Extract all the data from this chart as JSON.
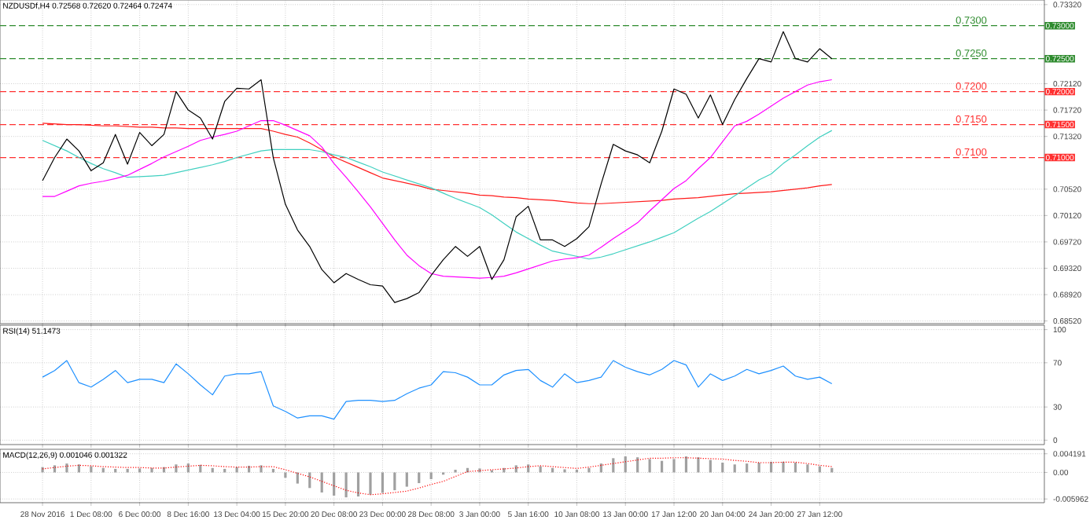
{
  "chart_data": [
    {
      "type": "line",
      "title": "NZDUSDf,H4  0.72568 0.72620 0.72464 0.72474",
      "grid": true,
      "tick_labels": "y",
      "categories": [
        null,
        null,
        null,
        null,
        null,
        null,
        null,
        null,
        null,
        null,
        null,
        null,
        null,
        null,
        null,
        null,
        null,
        null,
        null,
        null,
        null,
        null,
        null,
        null,
        null,
        null,
        null,
        null,
        null,
        null,
        null,
        null,
        null,
        null,
        null,
        null,
        null,
        null,
        null,
        null,
        null,
        null,
        null,
        null,
        null,
        null,
        null,
        null,
        null,
        null,
        null,
        null,
        null,
        null,
        null,
        null,
        null,
        null,
        null,
        null,
        null,
        null,
        null,
        null,
        null,
        null,
        null,
        null,
        null,
        null,
        null,
        null,
        null,
        null,
        null,
        null,
        null,
        null,
        null,
        null,
        null,
        null,
        null,
        null,
        null,
        null
      ],
      "ylim": [
        0.6848,
        0.7339
      ],
      "yticks": [
        {
          "value": 0.7332,
          "label": "0.73320"
        },
        {
          "value": 0.7212,
          "label": "0.72120"
        },
        {
          "value": 0.7172,
          "label": "0.71720"
        },
        {
          "value": 0.7132,
          "label": "0.71320"
        },
        {
          "value": 0.7052,
          "label": "0.70520"
        },
        {
          "value": 0.7012,
          "label": "0.70120"
        },
        {
          "value": 0.6972,
          "label": "0.69720"
        },
        {
          "value": 0.6932,
          "label": "0.69320"
        },
        {
          "value": 0.6892,
          "label": "0.68920"
        },
        {
          "value": 0.6852,
          "label": "0.68520"
        }
      ],
      "annotations": [
        "0.73000",
        "0.72500",
        "0.72000",
        "0.71500",
        "0.71000"
      ],
      "ref_lines": [
        {
          "axis": "y",
          "value": 0.73,
          "label": "0.7300",
          "color": "#2e8b2e",
          "line_style": "dashed"
        },
        {
          "axis": "y",
          "value": 0.725,
          "label": "0.7250",
          "color": "#2e8b2e",
          "line_style": "dashed"
        },
        {
          "axis": "y",
          "value": 0.72,
          "label": "0.7200",
          "color": "#ff3030",
          "line_style": "dashed"
        },
        {
          "axis": "y",
          "value": 0.715,
          "label": "0.7150",
          "color": "#ff3030",
          "line_style": "dashed"
        },
        {
          "axis": "y",
          "value": 0.71,
          "label": "0.7100",
          "color": "#ff3030",
          "line_style": "dashed"
        }
      ],
      "series": [
        {
          "color": "#ff1a1a",
          "values": [
            null,
            null,
            null,
            0.7152,
            0.7151,
            0.715,
            0.715,
            0.7149,
            0.7148,
            0.7148,
            0.7147,
            0.7146,
            0.7146,
            0.7145,
            0.7145,
            0.7144,
            0.7144,
            0.7144,
            0.7144,
            0.7144,
            0.7144,
            0.7144,
            0.714,
            0.7135,
            0.7131,
            0.7122,
            0.7112,
            0.7101,
            0.7093,
            0.7085,
            0.7077,
            0.7069,
            0.7065,
            0.7061,
            0.7057,
            0.7052,
            0.705,
            0.7048,
            0.7046,
            0.7043,
            0.7042,
            0.704,
            0.7039,
            0.7037,
            0.7036,
            0.7035,
            0.7033,
            0.7031,
            0.703,
            0.703,
            0.7031,
            0.7032,
            0.7033,
            0.7034,
            0.7035,
            0.7037,
            0.7038,
            0.7039,
            0.7041,
            0.7043,
            0.7045,
            0.7046,
            0.7047,
            0.7048,
            0.705,
            0.7052,
            0.7054,
            0.7057,
            0.7059,
            null,
            null,
            null,
            null,
            null,
            null,
            null,
            null,
            null,
            null,
            null,
            null,
            null,
            null,
            null,
            null,
            null
          ]
        },
        {
          "color": "#40d0c0",
          "values": [
            null,
            null,
            null,
            0.7126,
            0.7118,
            0.711,
            0.71,
            0.7091,
            0.7083,
            0.7077,
            0.707,
            0.7071,
            0.7072,
            0.7073,
            0.7077,
            0.7081,
            0.7085,
            0.7089,
            0.7094,
            0.71,
            0.7105,
            0.711,
            0.7112,
            0.7112,
            0.7112,
            0.7112,
            0.7109,
            0.7104,
            0.71,
            0.7093,
            0.7086,
            0.7078,
            0.7072,
            0.7066,
            0.706,
            0.7054,
            0.7046,
            0.7038,
            0.7031,
            0.7024,
            0.7013,
            0.7,
            0.6987,
            0.6977,
            0.6967,
            0.6958,
            0.6954,
            0.695,
            0.6946,
            0.6949,
            0.6954,
            0.696,
            0.6966,
            0.6972,
            0.6979,
            0.6986,
            0.6997,
            0.7008,
            0.7018,
            0.703,
            0.7042,
            0.7054,
            0.7066,
            0.7075,
            0.7091,
            0.7104,
            0.7118,
            0.7131,
            0.7141,
            null,
            null,
            null,
            null,
            null,
            null,
            null,
            null,
            null,
            null,
            null,
            null,
            null,
            null,
            null,
            null,
            null
          ]
        },
        {
          "color": "#ff00ff",
          "values": [
            null,
            null,
            null,
            0.7041,
            0.7041,
            0.7049,
            0.7057,
            0.7061,
            0.7064,
            0.7068,
            0.7073,
            0.7082,
            0.7091,
            0.7101,
            0.7109,
            0.7117,
            0.7126,
            0.7131,
            0.7135,
            0.714,
            0.7148,
            0.7156,
            0.7156,
            0.7149,
            0.7141,
            0.7133,
            0.7116,
            0.7091,
            0.707,
            0.7048,
            0.7025,
            0.7,
            0.6975,
            0.6952,
            0.6936,
            0.6924,
            0.692,
            0.6919,
            0.6918,
            0.6917,
            0.6918,
            0.692,
            0.6925,
            0.6931,
            0.6937,
            0.6943,
            0.6946,
            0.6948,
            0.6952,
            0.6964,
            0.6977,
            0.6989,
            0.7001,
            0.7019,
            0.7036,
            0.7053,
            0.7065,
            0.7083,
            0.71,
            0.7124,
            0.7148,
            0.7155,
            0.7166,
            0.7178,
            0.719,
            0.72,
            0.721,
            0.7215,
            0.7218,
            null,
            null,
            null,
            null,
            null,
            null,
            null,
            null,
            null,
            null,
            null,
            null,
            null,
            null,
            null,
            null,
            null
          ]
        },
        {
          "color": "#000000",
          "values": [
            null,
            null,
            null,
            0.7065,
            0.71,
            0.7128,
            0.711,
            0.708,
            0.7092,
            0.7135,
            0.709,
            0.7138,
            0.7118,
            0.7135,
            0.72,
            0.7172,
            0.716,
            0.7128,
            0.7185,
            0.7205,
            0.7204,
            0.7218,
            0.71,
            0.7029,
            0.699,
            0.6965,
            0.693,
            0.691,
            0.6924,
            0.6915,
            0.6907,
            0.6905,
            0.688,
            0.6886,
            0.6895,
            0.6921,
            0.6945,
            0.6965,
            0.695,
            0.6965,
            0.6915,
            0.6945,
            0.701,
            0.7026,
            0.6975,
            0.6975,
            0.6965,
            0.6977,
            0.6995,
            0.706,
            0.712,
            0.711,
            0.7104,
            0.7092,
            0.714,
            0.7204,
            0.7196,
            0.716,
            0.7195,
            0.715,
            0.7188,
            0.722,
            0.725,
            0.7245,
            0.7291,
            0.725,
            0.7245,
            0.7265,
            0.725,
            null,
            null,
            null,
            null,
            null,
            null,
            null,
            null,
            null,
            null,
            null,
            null,
            null,
            null,
            null,
            null,
            null
          ]
        }
      ]
    },
    {
      "type": "line",
      "title": "RSI(14) 51.1473",
      "grid": true,
      "tick_labels": "y",
      "categories": [
        null,
        null,
        null,
        null,
        null,
        null,
        null,
        null,
        null,
        null,
        null,
        null,
        null,
        null,
        null,
        null,
        null,
        null,
        null,
        null,
        null,
        null,
        null,
        null,
        null,
        null,
        null,
        null,
        null,
        null,
        null,
        null,
        null,
        null,
        null,
        null,
        null,
        null,
        null,
        null,
        null,
        null,
        null,
        null,
        null,
        null,
        null,
        null,
        null,
        null,
        null,
        null,
        null,
        null,
        null,
        null,
        null,
        null,
        null,
        null,
        null,
        null,
        null,
        null,
        null,
        null,
        null,
        null,
        null,
        null,
        null,
        null,
        null,
        null,
        null,
        null,
        null,
        null,
        null,
        null,
        null,
        null,
        null,
        null,
        null,
        null
      ],
      "ylim": [
        -4,
        104
      ],
      "yticks": [
        0,
        30,
        70,
        100
      ],
      "series": [
        {
          "color": "#1e90ff",
          "values": [
            null,
            null,
            null,
            57,
            63,
            72,
            52,
            48,
            55,
            63,
            52,
            55,
            55,
            52,
            69,
            60,
            50,
            41,
            58,
            60,
            60,
            62,
            31,
            26,
            20,
            22,
            22,
            19,
            35,
            36,
            36,
            35,
            36,
            42,
            47,
            50,
            62,
            61,
            57,
            50,
            50,
            59,
            63,
            64,
            54,
            48,
            60,
            52,
            54,
            57,
            72,
            66,
            62,
            59,
            64,
            72,
            68,
            48,
            60,
            54,
            58,
            64,
            60,
            63,
            67,
            58,
            55,
            57,
            51,
            null,
            null,
            null,
            null,
            null,
            null,
            null,
            null,
            null,
            null,
            null,
            null,
            null,
            null,
            null,
            null,
            null
          ]
        }
      ]
    },
    {
      "type": "bar",
      "title": "MACD(12,26,9) 0.001046 0.001322",
      "grid": true,
      "categories": [
        null,
        null,
        null,
        "28 Nov 2016",
        null,
        null,
        null,
        "1 Dec 08:00",
        null,
        null,
        null,
        "6 Dec 00:00",
        null,
        null,
        null,
        "8 Dec 16:00",
        null,
        null,
        null,
        "13 Dec 04:00",
        null,
        null,
        null,
        "15 Dec 20:00",
        null,
        null,
        null,
        "20 Dec 08:00",
        null,
        null,
        null,
        "23 Dec 00:00",
        null,
        null,
        null,
        "28 Dec 08:00",
        null,
        null,
        null,
        "3 Jan 00:00",
        null,
        null,
        null,
        "5 Jan 16:00",
        null,
        null,
        null,
        "10 Jan 08:00",
        null,
        null,
        null,
        "13 Jan 00:00",
        null,
        null,
        null,
        "17 Jan 12:00",
        null,
        null,
        null,
        "20 Jan 04:00",
        null,
        null,
        null,
        "24 Jan 20:00",
        null,
        null,
        null,
        "27 Jan 12:00",
        null,
        null,
        null,
        null,
        null,
        null,
        null,
        null,
        null,
        null,
        null,
        null,
        null,
        null,
        null,
        null,
        null,
        null
      ],
      "ylim": [
        -0.0068,
        0.0052
      ],
      "yticks": [
        0.004191,
        {
          "value": 0,
          "label": "0.00"
        },
        -0.005962
      ],
      "series": [
        {
          "color": "#a0a0a0",
          "values": [
            null,
            null,
            null,
            0.0012,
            0.0016,
            0.002,
            0.0018,
            0.0014,
            0.001,
            0.0008,
            0.0008,
            0.0009,
            0.001,
            0.0012,
            0.0018,
            0.002,
            0.0017,
            0.001,
            0.0008,
            0.0012,
            0.0015,
            0.0016,
            0.0008,
            -0.0012,
            -0.0025,
            -0.0035,
            -0.0045,
            -0.0052,
            -0.0056,
            -0.0054,
            -0.005,
            -0.0046,
            -0.004,
            -0.0032,
            -0.0024,
            -0.0015,
            -0.0005,
            0.0006,
            0.001,
            0.0009,
            0.0005,
            0.001,
            0.0016,
            0.0018,
            0.0014,
            0.001,
            0.0007,
            0.0006,
            0.001,
            0.002,
            0.0032,
            0.0036,
            0.0034,
            0.003,
            0.0026,
            0.003,
            0.0036,
            0.0034,
            0.0028,
            0.0022,
            0.0018,
            0.002,
            0.0022,
            0.0024,
            0.0024,
            0.0022,
            0.0018,
            0.0014,
            0.001,
            null,
            null,
            null,
            null,
            null,
            null,
            null,
            null,
            null,
            null,
            null,
            null,
            null,
            null,
            null,
            null,
            null
          ]
        },
        {
          "type": "line",
          "line_style": "dotted",
          "color": "#ff0000",
          "values": [
            null,
            null,
            null,
            0.0008,
            0.0011,
            0.0014,
            0.0016,
            0.0015,
            0.0013,
            0.0012,
            0.0011,
            0.0011,
            0.001,
            0.001,
            0.0012,
            0.0014,
            0.0016,
            0.0015,
            0.0013,
            0.0012,
            0.0012,
            0.0013,
            0.0013,
            0.0006,
            -0.0002,
            -0.001,
            -0.002,
            -0.003,
            -0.004,
            -0.0046,
            -0.005,
            -0.0048,
            -0.0045,
            -0.0042,
            -0.0035,
            -0.0027,
            -0.002,
            -0.0009,
            0.0002,
            0.0004,
            0.0006,
            0.0008,
            0.001,
            0.0013,
            0.0015,
            0.0013,
            0.0011,
            0.0009,
            0.0012,
            0.0016,
            0.002,
            0.0024,
            0.0028,
            0.0032,
            0.0032,
            0.0033,
            0.0033,
            0.0032,
            0.0031,
            0.003,
            0.0027,
            0.0025,
            0.0022,
            0.0022,
            0.0023,
            0.0023,
            0.002,
            0.0016,
            0.0013,
            null,
            null,
            null,
            null,
            null,
            null,
            null,
            null,
            null,
            null,
            null,
            null,
            null,
            null,
            null,
            null,
            null
          ]
        }
      ]
    }
  ]
}
